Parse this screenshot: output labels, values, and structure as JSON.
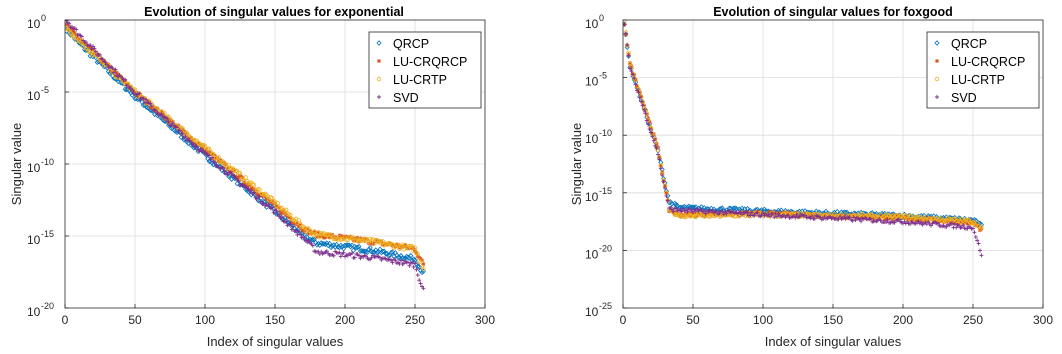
{
  "chart_data": [
    {
      "type": "scatter",
      "title": "Evolution of singular values for exponential",
      "xlabel": "Index of singular values",
      "ylabel": "Singular value",
      "xlim": [
        0,
        300
      ],
      "ylim_exponent": [
        -20,
        0
      ],
      "yscale": "log",
      "xticks": [
        0,
        50,
        100,
        150,
        200,
        250,
        300
      ],
      "yticks": [
        {
          "base": "10",
          "exp": "0",
          "value": 0
        },
        {
          "base": "10",
          "exp": "-5",
          "value": -5
        },
        {
          "base": "10",
          "exp": "-10",
          "value": -10
        },
        {
          "base": "10",
          "exp": "-15",
          "value": -15
        },
        {
          "base": "10",
          "exp": "-20",
          "value": -20
        }
      ],
      "grid": true,
      "legend_position": "top-right",
      "series": [
        {
          "name": "QRCP",
          "marker": "diamond",
          "color": "#0072BD",
          "points": [
            [
              1,
              -0.6
            ],
            [
              10,
              -1.6
            ],
            [
              50,
              -5.3
            ],
            [
              100,
              -9.4
            ],
            [
              150,
              -13.3
            ],
            [
              172,
              -15.1
            ],
            [
              180,
              -15.5
            ],
            [
              220,
              -16.0
            ],
            [
              250,
              -16.6
            ],
            [
              256,
              -17.6
            ]
          ]
        },
        {
          "name": "LU-CRQRCP",
          "marker": "asterisk",
          "color": "#D95319",
          "points": [
            [
              1,
              -0.4
            ],
            [
              10,
              -1.3
            ],
            [
              50,
              -5.0
            ],
            [
              100,
              -9.0
            ],
            [
              150,
              -12.9
            ],
            [
              172,
              -14.6
            ],
            [
              180,
              -14.9
            ],
            [
              220,
              -15.4
            ],
            [
              250,
              -15.9
            ],
            [
              256,
              -17.0
            ]
          ]
        },
        {
          "name": "LU-CRTP",
          "marker": "circle",
          "color": "#EDB120",
          "points": [
            [
              1,
              -0.5
            ],
            [
              10,
              -1.4
            ],
            [
              50,
              -5.0
            ],
            [
              100,
              -8.9
            ],
            [
              150,
              -12.7
            ],
            [
              172,
              -14.5
            ],
            [
              180,
              -14.9
            ],
            [
              220,
              -15.4
            ],
            [
              250,
              -15.9
            ],
            [
              256,
              -17.2
            ]
          ]
        },
        {
          "name": "SVD",
          "marker": "plus",
          "color": "#7E2F8E",
          "points": [
            [
              1,
              0.0
            ],
            [
              10,
              -1.0
            ],
            [
              50,
              -5.0
            ],
            [
              100,
              -9.3
            ],
            [
              150,
              -13.3
            ],
            [
              172,
              -15.3
            ],
            [
              180,
              -16.1
            ],
            [
              220,
              -16.5
            ],
            [
              250,
              -17.0
            ],
            [
              256,
              -18.8
            ]
          ]
        }
      ]
    },
    {
      "type": "scatter",
      "title": "Evolution of singular values for foxgood",
      "xlabel": "Index of singular values",
      "ylabel": "Singular value",
      "xlim": [
        0,
        300
      ],
      "ylim_exponent": [
        -25,
        0
      ],
      "yscale": "log",
      "xticks": [
        0,
        50,
        100,
        150,
        200,
        250,
        300
      ],
      "yticks": [
        {
          "base": "10",
          "exp": "0",
          "value": 0
        },
        {
          "base": "10",
          "exp": "-5",
          "value": -5
        },
        {
          "base": "10",
          "exp": "-10",
          "value": -10
        },
        {
          "base": "10",
          "exp": "-15",
          "value": -15
        },
        {
          "base": "10",
          "exp": "-20",
          "value": -20
        },
        {
          "base": "10",
          "exp": "-25",
          "value": -25
        }
      ],
      "grid": true,
      "legend_position": "top-right",
      "series": [
        {
          "name": "QRCP",
          "marker": "diamond",
          "color": "#0072BD",
          "points": [
            [
              1,
              -0.4
            ],
            [
              5,
              -4.0
            ],
            [
              15,
              -7.6
            ],
            [
              25,
              -11.4
            ],
            [
              33,
              -15.8
            ],
            [
              40,
              -16.3
            ],
            [
              100,
              -16.6
            ],
            [
              200,
              -17.0
            ],
            [
              250,
              -17.4
            ],
            [
              256,
              -17.9
            ]
          ]
        },
        {
          "name": "LU-CRQRCP",
          "marker": "asterisk",
          "color": "#D95319",
          "points": [
            [
              1,
              -0.3
            ],
            [
              5,
              -3.8
            ],
            [
              15,
              -7.4
            ],
            [
              25,
              -11.2
            ],
            [
              33,
              -16.5
            ],
            [
              40,
              -16.9
            ],
            [
              100,
              -16.8
            ],
            [
              200,
              -17.2
            ],
            [
              250,
              -17.6
            ],
            [
              256,
              -18.2
            ]
          ]
        },
        {
          "name": "LU-CRTP",
          "marker": "circle",
          "color": "#EDB120",
          "points": [
            [
              1,
              -0.3
            ],
            [
              5,
              -3.9
            ],
            [
              15,
              -7.5
            ],
            [
              25,
              -11.3
            ],
            [
              33,
              -16.4
            ],
            [
              40,
              -17.0
            ],
            [
              100,
              -16.9
            ],
            [
              200,
              -17.1
            ],
            [
              250,
              -17.5
            ],
            [
              256,
              -18.0
            ]
          ]
        },
        {
          "name": "SVD",
          "marker": "plus",
          "color": "#7E2F8E",
          "points": [
            [
              1,
              -0.4
            ],
            [
              5,
              -4.1
            ],
            [
              15,
              -7.8
            ],
            [
              25,
              -11.6
            ],
            [
              33,
              -16.4
            ],
            [
              40,
              -16.5
            ],
            [
              100,
              -16.9
            ],
            [
              200,
              -17.5
            ],
            [
              250,
              -18.0
            ],
            [
              256,
              -20.3
            ]
          ]
        }
      ]
    }
  ]
}
